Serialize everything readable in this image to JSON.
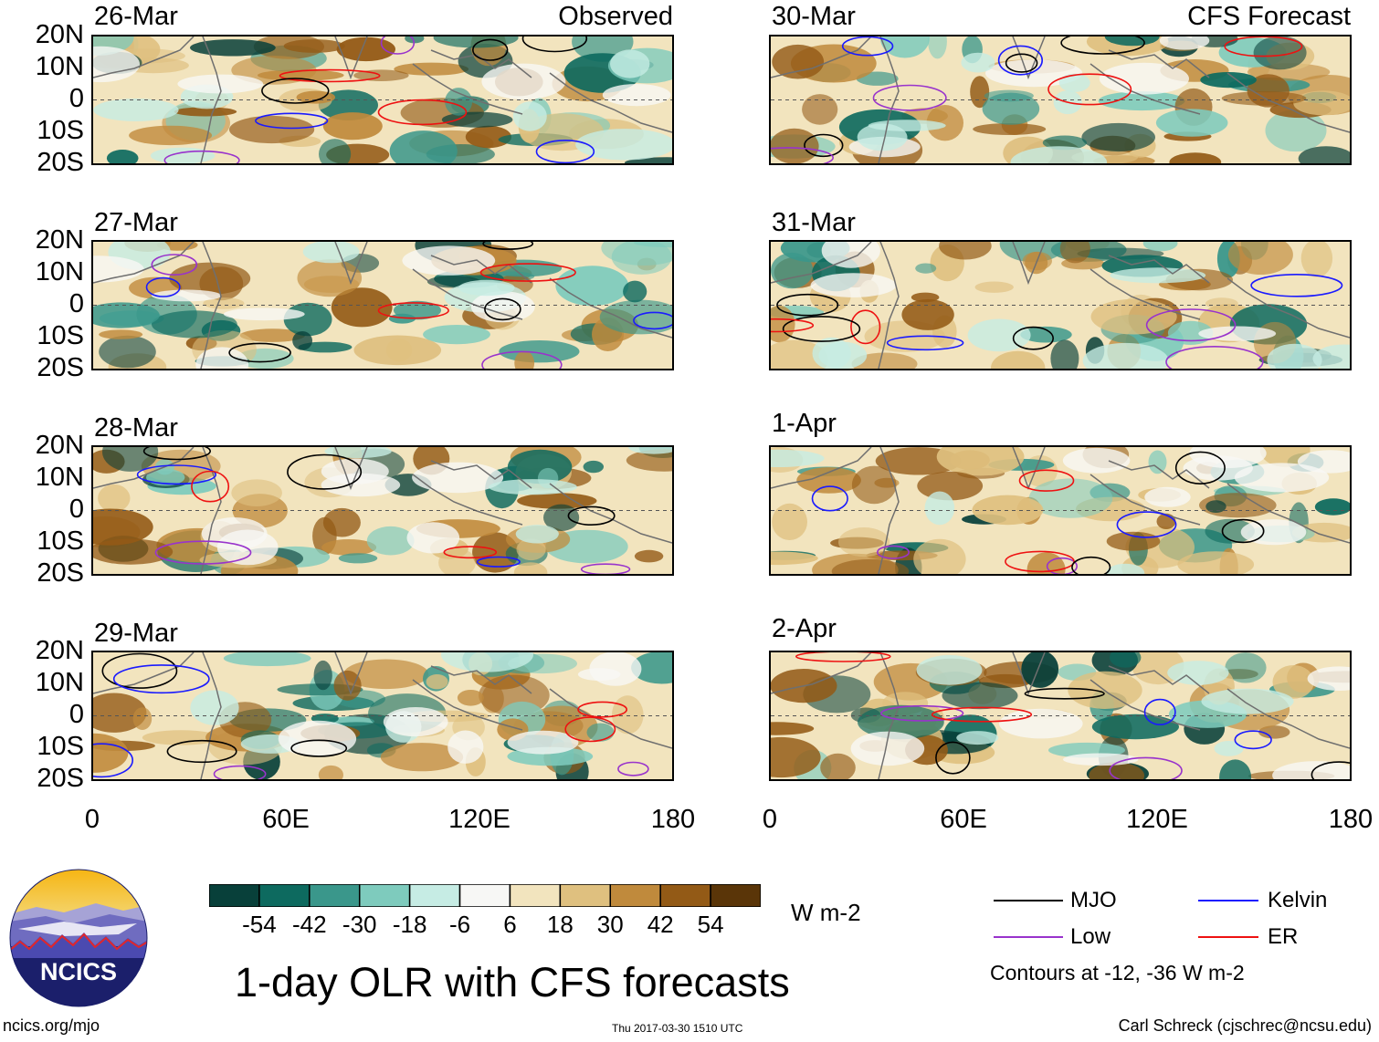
{
  "columns": [
    {
      "header": "Observed",
      "panels": [
        {
          "date": "26-Mar"
        },
        {
          "date": "27-Mar"
        },
        {
          "date": "28-Mar"
        },
        {
          "date": "29-Mar"
        }
      ]
    },
    {
      "header": "CFS Forecast",
      "panels": [
        {
          "date": "30-Mar"
        },
        {
          "date": "31-Mar"
        },
        {
          "date": "1-Apr"
        },
        {
          "date": "2-Apr"
        }
      ]
    }
  ],
  "lat_labels": [
    "20N",
    "10N",
    "0",
    "10S",
    "20S"
  ],
  "lon_labels": [
    "0",
    "60E",
    "120E",
    "180"
  ],
  "colorbar": {
    "colors": [
      "#08403a",
      "#0d6a5f",
      "#3a978b",
      "#7ecbbd",
      "#c6ece4",
      "#f7f7f5",
      "#f2e4be",
      "#dfc07f",
      "#c08a3c",
      "#935a16",
      "#5a3508"
    ],
    "labels": [
      "-54",
      "-42",
      "-30",
      "-18",
      "-6",
      "6",
      "18",
      "30",
      "42",
      "54"
    ],
    "units": "W m-2"
  },
  "legend": {
    "items": [
      {
        "label": "MJO",
        "color": "#000000"
      },
      {
        "label": "Kelvin",
        "color": "#1a1aff"
      },
      {
        "label": "Low",
        "color": "#9933cc"
      },
      {
        "label": "ER",
        "color": "#ee1111"
      }
    ],
    "note": "Contours at -12, -36 W m-2"
  },
  "title": "1-day OLR with CFS forecasts",
  "logo_text": "NCICS",
  "footer": {
    "url": "ncics.org/mjo",
    "timestamp": "Thu 2017-03-30 1510 UTC",
    "credit": "Carl Schreck (cjschrec@ncsu.edu)"
  }
}
